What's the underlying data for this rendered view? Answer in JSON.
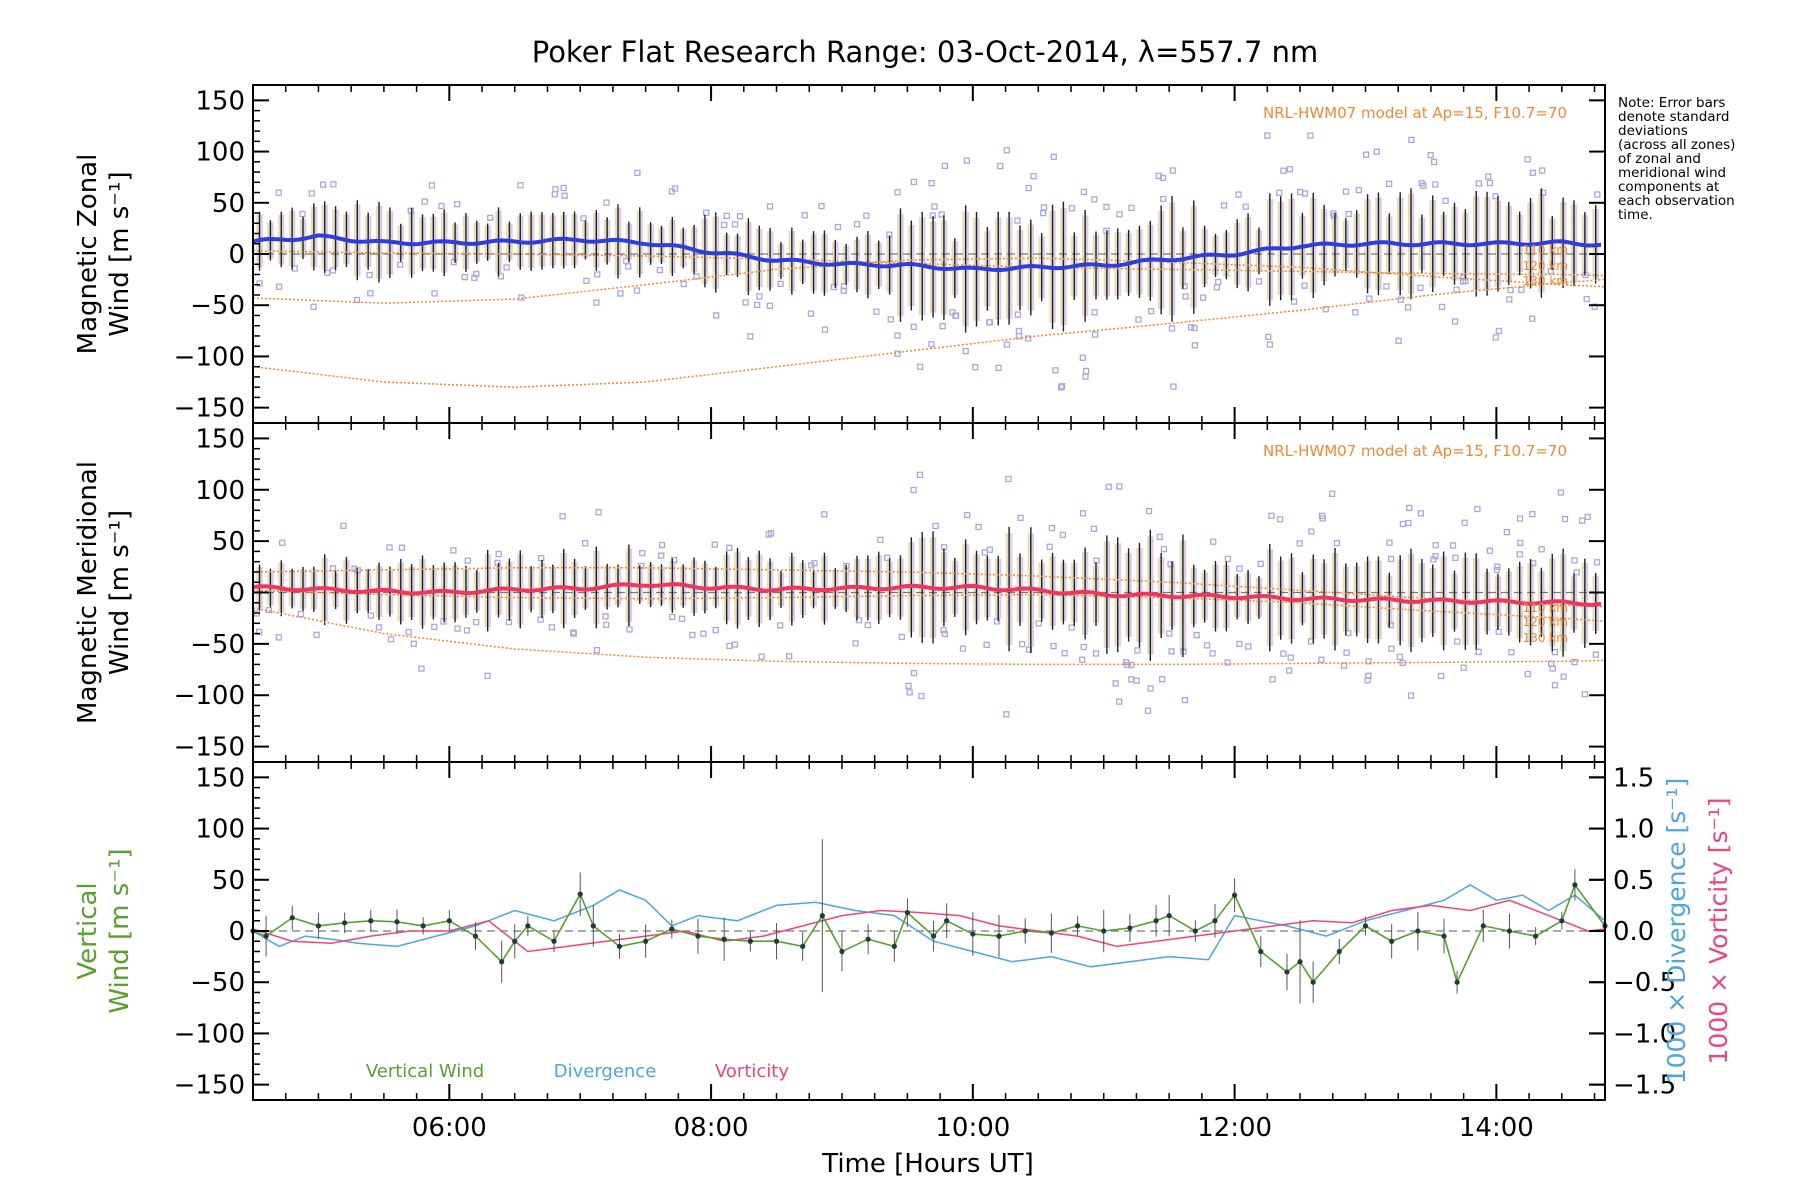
{
  "chart_data": [
    {
      "type": "line",
      "panel": "zonal",
      "title": "Poker Flat Research Range: 03-Oct-2014, λ=557.7 nm",
      "ylabel_lines": [
        "Magnetic Zonal",
        "Wind [m s⁻¹]"
      ],
      "ylim": [
        -165,
        165
      ],
      "yticks": [
        "150",
        "100",
        "50",
        "0",
        "−50",
        "−100",
        "−150"
      ],
      "model_label": "NRL-HWM07 model at Ap=15, F10.7=70",
      "altitude_labels": [
        "110 km",
        "120 km",
        "130 km"
      ],
      "colors": {
        "mean": "#2b3fe0",
        "model": "#f08a30",
        "scatter": "#a9a8dd"
      },
      "series": [
        {
          "x": [
            4.5,
            5.0,
            5.5,
            6.0,
            6.5,
            7.0,
            7.5,
            8.0,
            8.5,
            9.0,
            9.5,
            10.0,
            10.5,
            11.0,
            11.5,
            12.0,
            12.5,
            13.0,
            13.5,
            14.0,
            14.5,
            14.83
          ],
          "values": [
            12,
            17,
            11,
            11,
            12,
            14,
            11,
            2,
            -6,
            -10,
            -11,
            -15,
            -13,
            -11,
            -5,
            0,
            8,
            10,
            10,
            10,
            11,
            9
          ]
        }
      ],
      "model_lines": [
        {
          "x": [
            4.5,
            5.5,
            6.5,
            7.5,
            8.5,
            9.5,
            10.5,
            11.5,
            12.5,
            13.5,
            14.5,
            14.83
          ],
          "values": [
            3,
            1,
            0,
            -2,
            -5,
            -9,
            -13,
            -15,
            -17,
            -19,
            -20,
            -21
          ]
        },
        {
          "x": [
            4.5,
            5.5,
            6.5,
            7.5,
            8.5,
            9.5,
            10.5,
            11.5,
            12.5,
            13.5,
            14.5,
            14.83
          ],
          "values": [
            -43,
            -48,
            -44,
            -30,
            -15,
            -6,
            -4,
            -8,
            -13,
            -22,
            -30,
            -32
          ]
        },
        {
          "x": [
            4.5,
            5.5,
            6.5,
            7.5,
            8.5,
            9.5,
            10.5,
            11.5,
            12.5,
            13.5,
            14.5,
            14.83
          ],
          "values": [
            -110,
            -125,
            -130,
            -125,
            -110,
            -95,
            -80,
            -68,
            -55,
            -40,
            -28,
            -25
          ]
        }
      ]
    },
    {
      "type": "line",
      "panel": "meridional",
      "ylabel_lines": [
        "Magnetic Meridional",
        "Wind [m s⁻¹]"
      ],
      "ylim": [
        -165,
        165
      ],
      "yticks": [
        "150",
        "100",
        "50",
        "0",
        "−50",
        "−100",
        "−150"
      ],
      "model_label": "NRL-HWM07 model at Ap=15, F10.7=70",
      "altitude_labels": [
        "110 km",
        "120 km",
        "130 km"
      ],
      "colors": {
        "mean": "#f0355e",
        "model": "#f08a30",
        "scatter": "#a9a8dd"
      },
      "series": [
        {
          "x": [
            4.5,
            5.0,
            5.5,
            6.0,
            6.5,
            7.0,
            7.5,
            8.0,
            8.5,
            9.0,
            9.5,
            10.0,
            10.5,
            11.0,
            11.5,
            12.0,
            12.5,
            13.0,
            13.5,
            14.0,
            14.5,
            14.83
          ],
          "values": [
            5,
            3,
            1,
            0,
            3,
            4,
            8,
            5,
            3,
            4,
            5,
            5,
            2,
            -2,
            -3,
            -4,
            -6,
            -7,
            -8,
            -9,
            -10,
            -11
          ]
        }
      ],
      "model_lines": [
        {
          "x": [
            4.5,
            5.5,
            6.5,
            7.5,
            8.5,
            9.5,
            10.5,
            11.5,
            12.5,
            13.5,
            14.5,
            14.83
          ],
          "values": [
            20,
            22,
            24,
            24,
            22,
            20,
            16,
            10,
            2,
            -6,
            -12,
            -14
          ]
        },
        {
          "x": [
            4.5,
            5.5,
            6.5,
            7.5,
            8.5,
            9.5,
            10.5,
            11.5,
            12.5,
            13.5,
            14.5,
            14.83
          ],
          "values": [
            2,
            -2,
            -5,
            -6,
            -5,
            -3,
            -2,
            -5,
            -10,
            -18,
            -25,
            -28
          ]
        },
        {
          "x": [
            4.5,
            5.5,
            6.5,
            7.5,
            8.5,
            9.5,
            10.5,
            11.5,
            12.5,
            13.5,
            14.5,
            14.83
          ],
          "values": [
            -15,
            -40,
            -55,
            -63,
            -67,
            -69,
            -70,
            -70,
            -69,
            -68,
            -67,
            -66
          ]
        }
      ]
    },
    {
      "type": "line",
      "panel": "vertical",
      "ylabel_lines": [
        "Vertical",
        "Wind [m s⁻¹]"
      ],
      "xlabel": "Time [Hours UT]",
      "xticks": [
        "06:00",
        "08:00",
        "10:00",
        "12:00",
        "14:00"
      ],
      "xlim": [
        4.5,
        14.83
      ],
      "ylim": [
        -165,
        165
      ],
      "yticks": [
        "150",
        "100",
        "50",
        "0",
        "−50",
        "−100",
        "−150"
      ],
      "ylim_right": [
        -1.65,
        1.65
      ],
      "yticks_right": [
        "1.5",
        "1.0",
        "0.5",
        "0.0",
        "−0.5",
        "−1.0",
        "−1.5"
      ],
      "ylabel_right": [
        "1000 × Divergence [s⁻¹]",
        "1000 × Vorticity [s⁻¹]"
      ],
      "legend": [
        "Vertical Wind",
        "Divergence",
        "Vorticity"
      ],
      "colors": {
        "vertical": "#5aa02c",
        "divergence": "#4aa8dc",
        "vorticity": "#f0447a",
        "points": "#1f3b3b"
      },
      "series": [
        {
          "name": "Vertical Wind",
          "x": [
            4.5,
            4.6,
            4.8,
            5.0,
            5.2,
            5.4,
            5.6,
            5.8,
            6.0,
            6.2,
            6.4,
            6.5,
            6.6,
            6.8,
            7.0,
            7.1,
            7.3,
            7.5,
            7.7,
            7.9,
            8.1,
            8.3,
            8.5,
            8.7,
            8.85,
            9.0,
            9.2,
            9.4,
            9.5,
            9.7,
            9.8,
            10.0,
            10.2,
            10.4,
            10.6,
            10.8,
            11.0,
            11.2,
            11.4,
            11.5,
            11.7,
            11.85,
            12.0,
            12.2,
            12.4,
            12.5,
            12.6,
            12.8,
            13.0,
            13.2,
            13.4,
            13.6,
            13.7,
            13.9,
            14.1,
            14.3,
            14.5,
            14.6,
            14.83
          ],
          "values": [
            0,
            -5,
            13,
            5,
            8,
            10,
            9,
            5,
            10,
            -5,
            -30,
            -10,
            5,
            -10,
            36,
            5,
            -15,
            -10,
            2,
            -5,
            -8,
            -10,
            -10,
            -15,
            15,
            -20,
            -8,
            -15,
            18,
            -5,
            10,
            -3,
            -5,
            0,
            -2,
            5,
            0,
            3,
            10,
            15,
            0,
            10,
            35,
            -20,
            -40,
            -30,
            -50,
            -20,
            5,
            -10,
            0,
            -5,
            -50,
            5,
            0,
            -5,
            10,
            45,
            5
          ]
        },
        {
          "name": "Divergence",
          "x": [
            4.5,
            4.7,
            4.9,
            5.1,
            5.3,
            5.6,
            5.9,
            6.2,
            6.5,
            6.8,
            7.1,
            7.3,
            7.5,
            7.7,
            7.9,
            8.2,
            8.5,
            8.8,
            9.1,
            9.4,
            9.7,
            10.0,
            10.3,
            10.6,
            10.9,
            11.2,
            11.5,
            11.8,
            12.0,
            12.2,
            12.4,
            12.7,
            13.0,
            13.3,
            13.6,
            13.8,
            14.0,
            14.2,
            14.4,
            14.6,
            14.83
          ],
          "values": [
            0.0,
            -0.15,
            -0.05,
            -0.08,
            -0.12,
            -0.15,
            -0.05,
            0.05,
            0.2,
            0.1,
            0.25,
            0.4,
            0.3,
            0.05,
            0.15,
            0.1,
            0.25,
            0.28,
            0.2,
            0.15,
            -0.1,
            -0.2,
            -0.3,
            -0.25,
            -0.35,
            -0.3,
            -0.25,
            -0.28,
            0.15,
            0.1,
            0.05,
            -0.05,
            0.1,
            0.2,
            0.3,
            0.45,
            0.3,
            0.35,
            0.2,
            0.35,
            0.1
          ]
        },
        {
          "name": "Vorticity",
          "x": [
            4.5,
            4.8,
            5.1,
            5.4,
            5.7,
            6.0,
            6.3,
            6.6,
            6.9,
            7.2,
            7.5,
            7.8,
            8.1,
            8.4,
            8.7,
            9.0,
            9.3,
            9.6,
            9.9,
            10.2,
            10.5,
            10.8,
            11.1,
            11.4,
            11.7,
            12.0,
            12.3,
            12.6,
            12.9,
            13.2,
            13.5,
            13.8,
            14.1,
            14.4,
            14.7,
            14.83
          ],
          "values": [
            0.02,
            -0.1,
            -0.12,
            -0.05,
            0.0,
            0.0,
            0.1,
            -0.2,
            -0.15,
            -0.1,
            -0.05,
            0.0,
            -0.1,
            -0.05,
            0.05,
            0.15,
            0.2,
            0.18,
            0.15,
            0.05,
            0.0,
            -0.05,
            -0.15,
            -0.1,
            -0.05,
            0.0,
            0.05,
            0.1,
            0.08,
            0.2,
            0.25,
            0.2,
            0.3,
            0.15,
            0.0,
            0.02
          ]
        }
      ]
    }
  ],
  "note_lines": [
    "Note: Error bars",
    "denote standard",
    "deviations",
    "(across all zones)",
    "of zonal and",
    "meridional wind",
    "components at",
    "each observation",
    "time."
  ]
}
